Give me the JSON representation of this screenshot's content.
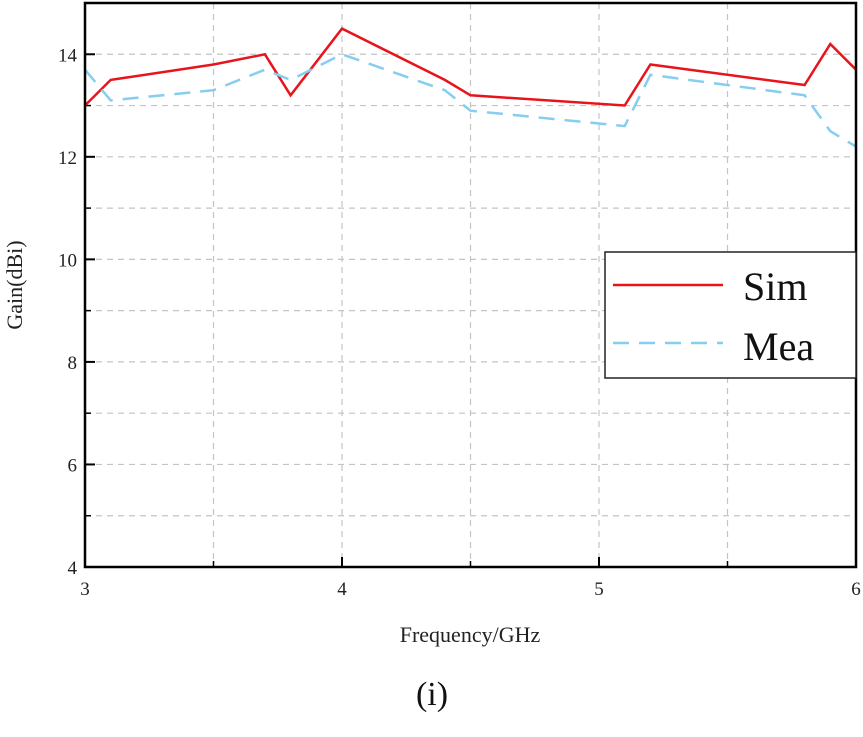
{
  "chart_data": {
    "type": "line",
    "xlabel": "Frequency/GHz",
    "ylabel": "Gain(dBi)",
    "xlim": [
      3,
      6
    ],
    "ylim": [
      4,
      15
    ],
    "x_ticks": [
      3,
      4,
      5,
      6
    ],
    "y_ticks": [
      4,
      6,
      8,
      10,
      12,
      14
    ],
    "x_minor_ticks": [
      3.5,
      4.5,
      5.5
    ],
    "y_minor_ticks": [
      5,
      7,
      9,
      11,
      13
    ],
    "grid": true,
    "legend_position": "right",
    "series": [
      {
        "name": "Sim",
        "color": "#e8141c",
        "style": "solid",
        "x": [
          3.0,
          3.1,
          3.5,
          3.7,
          3.8,
          4.0,
          4.4,
          4.5,
          5.1,
          5.2,
          5.8,
          5.9,
          6.0
        ],
        "y": [
          13.0,
          13.5,
          13.8,
          14.0,
          13.2,
          14.5,
          13.5,
          13.2,
          13.0,
          13.8,
          13.4,
          14.2,
          13.7
        ]
      },
      {
        "name": "Mea",
        "color": "#86cdf0",
        "style": "dashed",
        "x": [
          3.0,
          3.1,
          3.5,
          3.7,
          3.8,
          4.0,
          4.4,
          4.5,
          5.1,
          5.2,
          5.8,
          5.9,
          6.0
        ],
        "y": [
          13.7,
          13.1,
          13.3,
          13.7,
          13.5,
          14.0,
          13.3,
          12.9,
          12.6,
          13.6,
          13.2,
          12.5,
          12.2
        ]
      }
    ]
  },
  "caption": "(i)"
}
